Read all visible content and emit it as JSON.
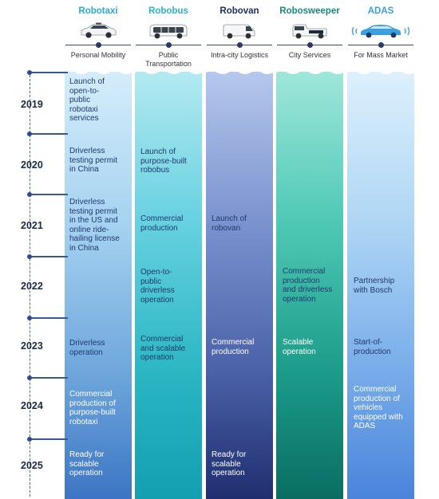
{
  "categories": [
    {
      "name": "Robotaxi",
      "subtitle": "Personal Mobility",
      "color": "#2aa9cf",
      "vehicle": "car"
    },
    {
      "name": "Robobus",
      "subtitle": "Public\nTransportation",
      "color": "#2ab5c3",
      "vehicle": "bus"
    },
    {
      "name": "Robovan",
      "subtitle": "Intra-city Logistics",
      "color": "#1e2f63",
      "vehicle": "van"
    },
    {
      "name": "Robosweeper",
      "subtitle": "City Services",
      "color": "#168a7c",
      "vehicle": "sweeper"
    },
    {
      "name": "ADAS",
      "subtitle": "For Mass Market",
      "color": "#3aa0e0",
      "vehicle": "adas-car"
    }
  ],
  "years": [
    "2019",
    "2020",
    "2021",
    "2022",
    "2023",
    "2024",
    "2025"
  ],
  "milestones": {
    "robotaxi": {
      "y2019": "Launch of\nopen-to-\npublic\nrobotaxi\nservices",
      "y2020": "Driverless\ntesting permit\nin China",
      "y2021": "Driverless\ntesting permit\nin the US and\nonline ride-\nhailing license\nin China",
      "y2023": "Driverless\noperation",
      "y2024": "Commercial\nproduction of\npurpose-built\nrobotaxi",
      "y2025": "Ready for\nscalable\noperation"
    },
    "robobus": {
      "y2020": "Launch of\npurpose-built\nrobobus",
      "y2021": "Commercial\nproduction",
      "y2022": "Open-to-\npublic\ndriverless\noperation",
      "y2023": "Commercial\nand scalable\noperation"
    },
    "robovan": {
      "y2021": "Launch of\nrobovan",
      "y2023": "Commercial\nproduction",
      "y2025": "Ready for\nscalable\noperation"
    },
    "robosweeper": {
      "y2022": "Commercial\nproduction\nand driverless\noperation",
      "y2023": "Scalable\noperation"
    },
    "adas": {
      "y2022": "Partnership\nwith Bosch",
      "y2023": "Start-of-\nproduction",
      "y2024": "Commercial\nproduction of\nvehicles\nequipped with\nADAS"
    }
  }
}
